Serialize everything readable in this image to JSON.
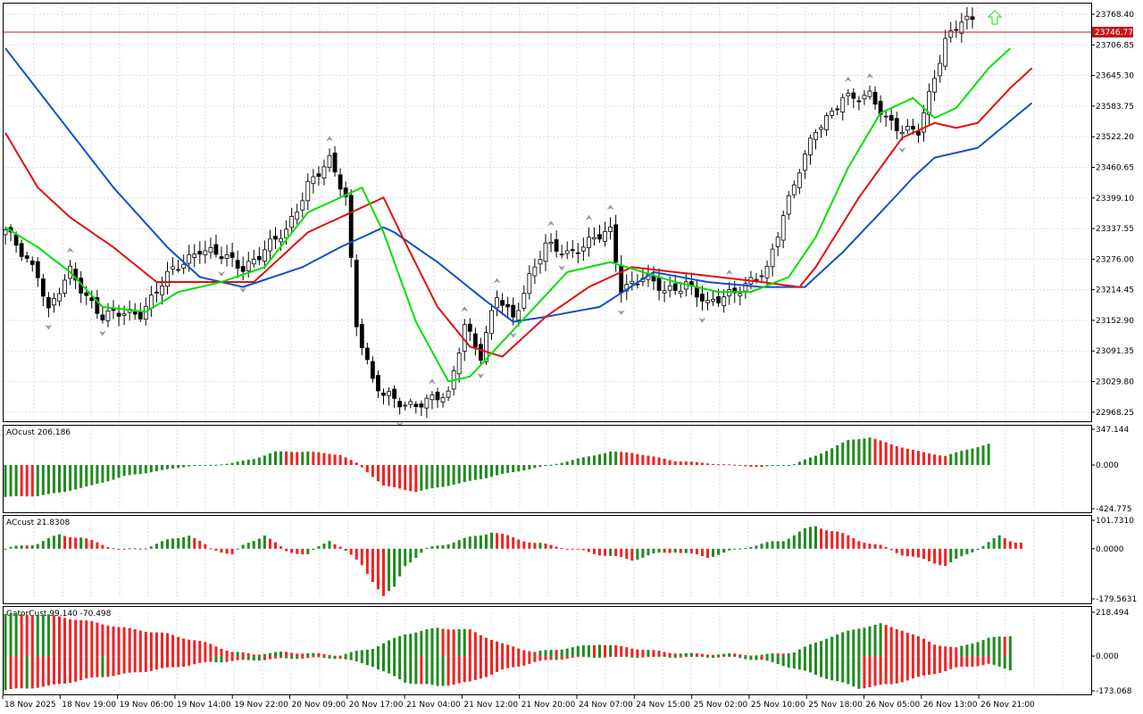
{
  "colors": {
    "bull_bar": "#1f8a1f",
    "bear_bar": "#ee2222",
    "lips": "#00e000",
    "teeth": "#e01010",
    "jaw": "#1050c8",
    "price_line": "#c2171b",
    "grid": "#dedede",
    "candle_outline": "#000000",
    "arrow_up": "#44dd44"
  },
  "current_price_label": "23746.77",
  "chart_data": [
    {
      "type": "candlestick",
      "title": "",
      "price_axis_ticks": [
        "23768.40",
        "23706.85",
        "23645.30",
        "23583.75",
        "23522.20",
        "23460.65",
        "23399.10",
        "23337.55",
        "23276.00",
        "23214.45",
        "23152.90",
        "23091.35",
        "23029.80",
        "22968.25"
      ],
      "ylim": [
        22950,
        23790
      ],
      "time_axis_ticks": [
        "18 Nov 2025",
        "18 Nov 19:00",
        "19 Nov 06:00",
        "19 Nov 14:00",
        "19 Nov 22:00",
        "20 Nov 09:00",
        "20 Nov 17:00",
        "21 Nov 04:00",
        "21 Nov 12:00",
        "21 Nov 20:00",
        "24 Nov 07:00",
        "24 Nov 15:00",
        "25 Nov 02:00",
        "25 Nov 10:00",
        "25 Nov 18:00",
        "26 Nov 05:00",
        "26 Nov 13:00",
        "26 Nov 21:00"
      ],
      "price_anchors": [
        [
          0,
          23330
        ],
        [
          6,
          23250
        ],
        [
          8,
          23170
        ],
        [
          12,
          23250
        ],
        [
          18,
          23160
        ],
        [
          25,
          23170
        ],
        [
          30,
          23240
        ],
        [
          36,
          23300
        ],
        [
          44,
          23260
        ],
        [
          52,
          23330
        ],
        [
          56,
          23430
        ],
        [
          60,
          23470
        ],
        [
          63,
          23400
        ],
        [
          65,
          23150
        ],
        [
          68,
          23030
        ],
        [
          70,
          23000
        ],
        [
          74,
          22985
        ],
        [
          78,
          22990
        ],
        [
          82,
          23000
        ],
        [
          85,
          23150
        ],
        [
          88,
          23080
        ],
        [
          91,
          23200
        ],
        [
          94,
          23160
        ],
        [
          97,
          23240
        ],
        [
          100,
          23300
        ],
        [
          104,
          23290
        ],
        [
          108,
          23310
        ],
        [
          112,
          23330
        ],
        [
          114,
          23220
        ],
        [
          118,
          23240
        ],
        [
          122,
          23210
        ],
        [
          126,
          23230
        ],
        [
          130,
          23180
        ],
        [
          134,
          23210
        ],
        [
          138,
          23230
        ],
        [
          141,
          23250
        ],
        [
          144,
          23370
        ],
        [
          147,
          23460
        ],
        [
          150,
          23530
        ],
        [
          153,
          23570
        ],
        [
          155,
          23610
        ],
        [
          157,
          23600
        ],
        [
          160,
          23600
        ],
        [
          163,
          23560
        ],
        [
          166,
          23540
        ],
        [
          169,
          23530
        ],
        [
          171,
          23600
        ],
        [
          174,
          23720
        ],
        [
          177,
          23760
        ],
        [
          179,
          23750
        ]
      ],
      "series": [
        {
          "name": "",
          "role": "jaw",
          "anchors": [
            [
              0,
              23700
            ],
            [
              10,
              23560
            ],
            [
              20,
              23420
            ],
            [
              30,
              23300
            ],
            [
              36,
              23240
            ],
            [
              44,
              23220
            ],
            [
              55,
              23260
            ],
            [
              62,
              23300
            ],
            [
              70,
              23340
            ],
            [
              72,
              23330
            ],
            [
              80,
              23270
            ],
            [
              88,
              23200
            ],
            [
              94,
              23150
            ],
            [
              100,
              23160
            ],
            [
              110,
              23180
            ],
            [
              120,
              23250
            ],
            [
              130,
              23230
            ],
            [
              140,
              23220
            ],
            [
              148,
              23220
            ],
            [
              155,
              23290
            ],
            [
              162,
              23370
            ],
            [
              168,
              23440
            ],
            [
              172,
              23480
            ],
            [
              180,
              23500
            ],
            [
              190,
              23590
            ]
          ]
        },
        {
          "name": "",
          "role": "teeth",
          "anchors": [
            [
              0,
              23530
            ],
            [
              6,
              23420
            ],
            [
              12,
              23360
            ],
            [
              20,
              23300
            ],
            [
              28,
              23230
            ],
            [
              36,
              23230
            ],
            [
              46,
              23230
            ],
            [
              56,
              23330
            ],
            [
              66,
              23380
            ],
            [
              70,
              23400
            ],
            [
              74,
              23310
            ],
            [
              80,
              23180
            ],
            [
              86,
              23100
            ],
            [
              92,
              23080
            ],
            [
              100,
              23160
            ],
            [
              108,
              23220
            ],
            [
              116,
              23260
            ],
            [
              124,
              23250
            ],
            [
              132,
              23240
            ],
            [
              140,
              23230
            ],
            [
              147,
              23220
            ],
            [
              150,
              23260
            ],
            [
              158,
              23400
            ],
            [
              166,
              23520
            ],
            [
              172,
              23550
            ],
            [
              176,
              23540
            ],
            [
              180,
              23550
            ],
            [
              186,
              23620
            ],
            [
              190,
              23660
            ]
          ]
        },
        {
          "name": "",
          "role": "lips",
          "anchors": [
            [
              0,
              23340
            ],
            [
              6,
              23300
            ],
            [
              12,
              23250
            ],
            [
              18,
              23180
            ],
            [
              26,
              23170
            ],
            [
              32,
              23210
            ],
            [
              40,
              23230
            ],
            [
              48,
              23260
            ],
            [
              56,
              23370
            ],
            [
              62,
              23400
            ],
            [
              66,
              23420
            ],
            [
              70,
              23330
            ],
            [
              76,
              23150
            ],
            [
              82,
              23030
            ],
            [
              86,
              23040
            ],
            [
              92,
              23110
            ],
            [
              98,
              23180
            ],
            [
              104,
              23250
            ],
            [
              112,
              23270
            ],
            [
              118,
              23250
            ],
            [
              124,
              23230
            ],
            [
              132,
              23210
            ],
            [
              138,
              23210
            ],
            [
              145,
              23240
            ],
            [
              150,
              23320
            ],
            [
              156,
              23460
            ],
            [
              162,
              23570
            ],
            [
              168,
              23600
            ],
            [
              172,
              23560
            ],
            [
              176,
              23580
            ],
            [
              182,
              23660
            ],
            [
              186,
              23700
            ]
          ]
        }
      ]
    },
    {
      "type": "histogram",
      "title": "AOcust 206.186",
      "ticks": [
        "347.144",
        "0.000",
        "-424.775"
      ],
      "ylim": [
        -424.775,
        347.144
      ],
      "anchors": [
        [
          0,
          -310
        ],
        [
          6,
          -300
        ],
        [
          10,
          -270
        ],
        [
          16,
          -200
        ],
        [
          22,
          -110
        ],
        [
          28,
          -60
        ],
        [
          34,
          -10
        ],
        [
          38,
          0
        ],
        [
          42,
          20
        ],
        [
          46,
          60
        ],
        [
          50,
          130
        ],
        [
          56,
          130
        ],
        [
          62,
          100
        ],
        [
          65,
          20
        ],
        [
          70,
          -200
        ],
        [
          76,
          -260
        ],
        [
          84,
          -180
        ],
        [
          92,
          -90
        ],
        [
          100,
          -10
        ],
        [
          106,
          60
        ],
        [
          112,
          130
        ],
        [
          116,
          120
        ],
        [
          124,
          40
        ],
        [
          132,
          10
        ],
        [
          140,
          -20
        ],
        [
          146,
          10
        ],
        [
          150,
          90
        ],
        [
          156,
          240
        ],
        [
          160,
          270
        ],
        [
          164,
          200
        ],
        [
          170,
          120
        ],
        [
          174,
          90
        ],
        [
          178,
          150
        ],
        [
          182,
          206.186
        ]
      ]
    },
    {
      "type": "histogram",
      "title": "ACcust 21.8308",
      "ticks": [
        "101.7310",
        "0.0000",
        "-179.5631"
      ],
      "ylim": [
        -179.5631,
        101.731
      ],
      "anchors": [
        [
          0,
          0
        ],
        [
          6,
          20
        ],
        [
          10,
          50
        ],
        [
          14,
          40
        ],
        [
          18,
          15
        ],
        [
          22,
          -5
        ],
        [
          26,
          5
        ],
        [
          30,
          30
        ],
        [
          34,
          50
        ],
        [
          38,
          0
        ],
        [
          42,
          -20
        ],
        [
          44,
          10
        ],
        [
          48,
          50
        ],
        [
          52,
          -10
        ],
        [
          56,
          -20
        ],
        [
          60,
          30
        ],
        [
          62,
          10
        ],
        [
          66,
          -60
        ],
        [
          70,
          -170
        ],
        [
          72,
          -140
        ],
        [
          74,
          -60
        ],
        [
          78,
          0
        ],
        [
          82,
          20
        ],
        [
          86,
          40
        ],
        [
          90,
          60
        ],
        [
          94,
          40
        ],
        [
          98,
          20
        ],
        [
          102,
          10
        ],
        [
          110,
          -20
        ],
        [
          116,
          -40
        ],
        [
          120,
          -20
        ],
        [
          124,
          -10
        ],
        [
          130,
          -30
        ],
        [
          134,
          -10
        ],
        [
          138,
          10
        ],
        [
          144,
          30
        ],
        [
          148,
          70
        ],
        [
          150,
          80
        ],
        [
          154,
          60
        ],
        [
          158,
          30
        ],
        [
          162,
          10
        ],
        [
          166,
          -20
        ],
        [
          170,
          -40
        ],
        [
          174,
          -60
        ],
        [
          176,
          -40
        ],
        [
          180,
          0
        ],
        [
          184,
          45
        ],
        [
          186,
          30
        ],
        [
          188,
          21.8308
        ]
      ]
    },
    {
      "type": "histogram",
      "title": "GatorCust 99.140 -70.498",
      "ticks": [
        "218.494",
        "0.000",
        "-173.068"
      ],
      "ylim": [
        -173.068,
        218.494
      ],
      "upper_anchors": [
        [
          0,
          210
        ],
        [
          8,
          205
        ],
        [
          16,
          170
        ],
        [
          22,
          140
        ],
        [
          30,
          110
        ],
        [
          38,
          60
        ],
        [
          42,
          20
        ],
        [
          46,
          10
        ],
        [
          52,
          20
        ],
        [
          58,
          10
        ],
        [
          62,
          5
        ],
        [
          68,
          40
        ],
        [
          74,
          110
        ],
        [
          80,
          140
        ],
        [
          86,
          130
        ],
        [
          92,
          60
        ],
        [
          98,
          20
        ],
        [
          104,
          40
        ],
        [
          110,
          60
        ],
        [
          116,
          40
        ],
        [
          122,
          20
        ],
        [
          128,
          10
        ],
        [
          134,
          10
        ],
        [
          140,
          5
        ],
        [
          146,
          20
        ],
        [
          152,
          90
        ],
        [
          158,
          140
        ],
        [
          162,
          160
        ],
        [
          166,
          130
        ],
        [
          172,
          60
        ],
        [
          176,
          40
        ],
        [
          182,
          90
        ],
        [
          186,
          99.14
        ]
      ],
      "lower_anchors": [
        [
          0,
          -170
        ],
        [
          8,
          -150
        ],
        [
          16,
          -110
        ],
        [
          22,
          -90
        ],
        [
          30,
          -60
        ],
        [
          38,
          -30
        ],
        [
          46,
          -20
        ],
        [
          54,
          -10
        ],
        [
          62,
          -10
        ],
        [
          68,
          -50
        ],
        [
          74,
          -130
        ],
        [
          80,
          -150
        ],
        [
          86,
          -130
        ],
        [
          92,
          -70
        ],
        [
          98,
          -30
        ],
        [
          104,
          -10
        ],
        [
          110,
          -5
        ],
        [
          118,
          -5
        ],
        [
          126,
          -5
        ],
        [
          134,
          -5
        ],
        [
          140,
          -20
        ],
        [
          146,
          -60
        ],
        [
          152,
          -110
        ],
        [
          158,
          -160
        ],
        [
          164,
          -140
        ],
        [
          170,
          -100
        ],
        [
          176,
          -60
        ],
        [
          182,
          -40
        ],
        [
          186,
          -70.498
        ]
      ]
    }
  ]
}
